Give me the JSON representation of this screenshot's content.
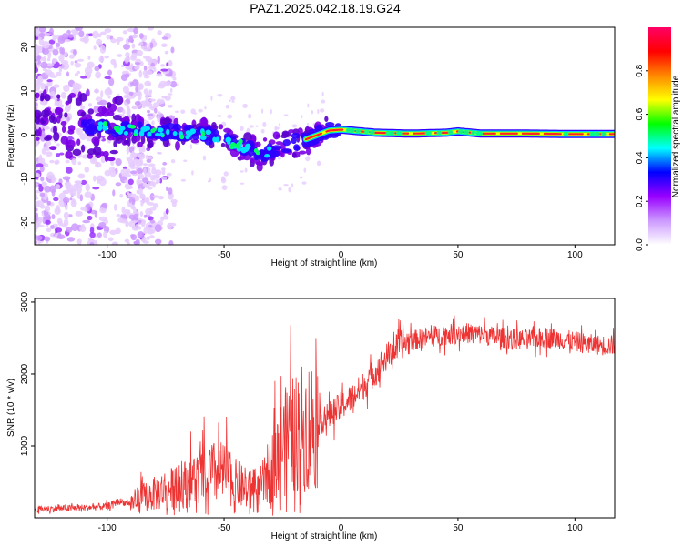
{
  "title": "PAZ1.2025.042.18.19.G24",
  "chart_data": [
    {
      "type": "heatmap",
      "xlabel": "Height of straight line (km)",
      "ylabel": "Frequency (Hz)",
      "xlim": [
        -131,
        117
      ],
      "ylim": [
        -25,
        24.5
      ],
      "xticks": [
        -100,
        -50,
        0,
        50,
        100
      ],
      "yticks": [
        -20,
        -10,
        0,
        10,
        20
      ],
      "grid": false,
      "colorbar": {
        "label": "Normalized spectral amplitude",
        "range": [
          0,
          1
        ],
        "ticks": [
          0.0,
          0.2,
          0.4,
          0.6,
          0.8
        ],
        "tick_labels": [
          "0.0",
          "0.2",
          "0.4",
          "0.6",
          "0.8"
        ],
        "colors": [
          "#ffffff",
          "#cc99ff",
          "#9900ff",
          "#0000ff",
          "#00ffff",
          "#00ff00",
          "#ffff00",
          "#ff8800",
          "#ff0000",
          "#ff0066"
        ]
      },
      "ridge": {
        "description_points": [
          {
            "x": -131,
            "y": 3
          },
          {
            "x": -100,
            "y": 1.5
          },
          {
            "x": -80,
            "y": 0.5
          },
          {
            "x": -60,
            "y": 0.5
          },
          {
            "x": -50,
            "y": -1
          },
          {
            "x": -40,
            "y": -3
          },
          {
            "x": -35,
            "y": -4.5
          },
          {
            "x": -25,
            "y": -2.5
          },
          {
            "x": -15,
            "y": -1
          },
          {
            "x": -10,
            "y": 0
          },
          {
            "x": -5,
            "y": 1
          },
          {
            "x": 0,
            "y": 1.2
          },
          {
            "x": 15,
            "y": 0.5
          },
          {
            "x": 30,
            "y": 0.3
          },
          {
            "x": 45,
            "y": 0.5
          },
          {
            "x": 50,
            "y": 0.8
          },
          {
            "x": 60,
            "y": 0.3
          },
          {
            "x": 80,
            "y": 0.3
          },
          {
            "x": 100,
            "y": 0.2
          },
          {
            "x": 117,
            "y": 0.2
          }
        ]
      }
    },
    {
      "type": "line",
      "xlabel": "Height of straight line (km)",
      "ylabel": "SNR (10 * v/v)",
      "xlim": [
        -131,
        117
      ],
      "ylim": [
        0,
        3050
      ],
      "xticks": [
        -100,
        -50,
        0,
        50,
        100
      ],
      "yticks": [
        1000,
        2000,
        3000
      ],
      "grid": false,
      "series": [
        {
          "color": "#ee3333",
          "x": [
            -131,
            -120,
            -110,
            -100,
            -95,
            -90,
            -85,
            -80,
            -75,
            -70,
            -65,
            -60,
            -55,
            -50,
            -45,
            -40,
            -35,
            -30,
            -25,
            -20,
            -15,
            -10,
            -5,
            0,
            5,
            10,
            15,
            20,
            25,
            30,
            35,
            40,
            45,
            50,
            55,
            60,
            65,
            70,
            75,
            80,
            85,
            90,
            95,
            100,
            105,
            110,
            117
          ],
          "values": [
            120,
            130,
            140,
            160,
            230,
            200,
            280,
            330,
            400,
            420,
            500,
            560,
            620,
            620,
            480,
            380,
            380,
            680,
            1020,
            1180,
            1270,
            1330,
            1420,
            1550,
            1680,
            1850,
            2050,
            2250,
            2400,
            2460,
            2500,
            2520,
            2550,
            2560,
            2570,
            2550,
            2520,
            2500,
            2480,
            2480,
            2500,
            2500,
            2480,
            2450,
            2420,
            2400,
            2400
          ]
        }
      ]
    }
  ]
}
